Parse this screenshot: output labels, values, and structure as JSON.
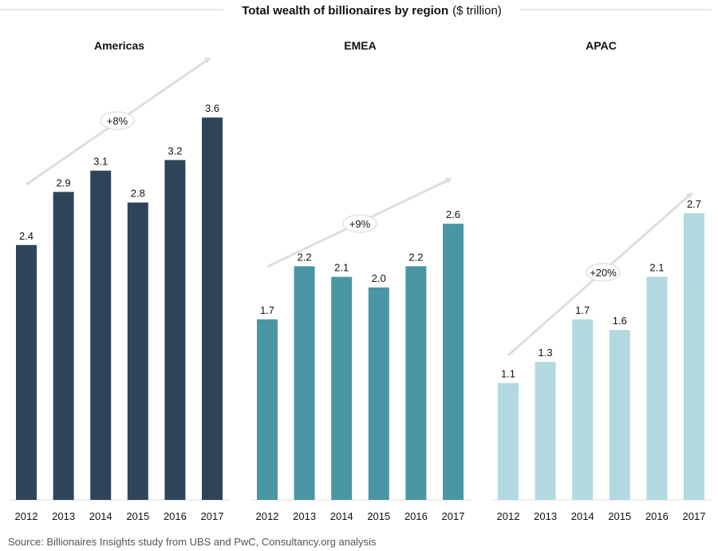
{
  "title": "Total wealth of billionaires by region",
  "title_unit": "($ trillion)",
  "source": "Source: Billionaires Insights study from UBS and PwC, Consultancy.org analysis",
  "chart_data": [
    {
      "type": "bar",
      "title": "Americas",
      "categories": [
        "2012",
        "2013",
        "2014",
        "2015",
        "2016",
        "2017"
      ],
      "values": [
        2.4,
        2.9,
        3.1,
        2.8,
        3.2,
        3.6
      ],
      "value_labels": [
        "2.4",
        "2.9",
        "3.1",
        "2.8",
        "3.2",
        "3.6"
      ],
      "growth_label": "+8%",
      "color": "#2f4459",
      "ylim": [
        0,
        3.6
      ]
    },
    {
      "type": "bar",
      "title": "EMEA",
      "categories": [
        "2012",
        "2013",
        "2014",
        "2015",
        "2016",
        "2017"
      ],
      "values": [
        1.7,
        2.2,
        2.1,
        2.0,
        2.2,
        2.6
      ],
      "value_labels": [
        "1.7",
        "2.2",
        "2.1",
        "2.0",
        "2.2",
        "2.6"
      ],
      "growth_label": "+9%",
      "color": "#4a96a4",
      "ylim": [
        0,
        3.6
      ]
    },
    {
      "type": "bar",
      "title": "APAC",
      "categories": [
        "2012",
        "2013",
        "2014",
        "2015",
        "2016",
        "2017"
      ],
      "values": [
        1.1,
        1.3,
        1.7,
        1.6,
        2.1,
        2.7
      ],
      "value_labels": [
        "1.1",
        "1.3",
        "1.7",
        "1.6",
        "2.1",
        "2.7"
      ],
      "growth_label": "+20%",
      "color": "#b3d9e0",
      "ylim": [
        0,
        3.6
      ]
    }
  ]
}
